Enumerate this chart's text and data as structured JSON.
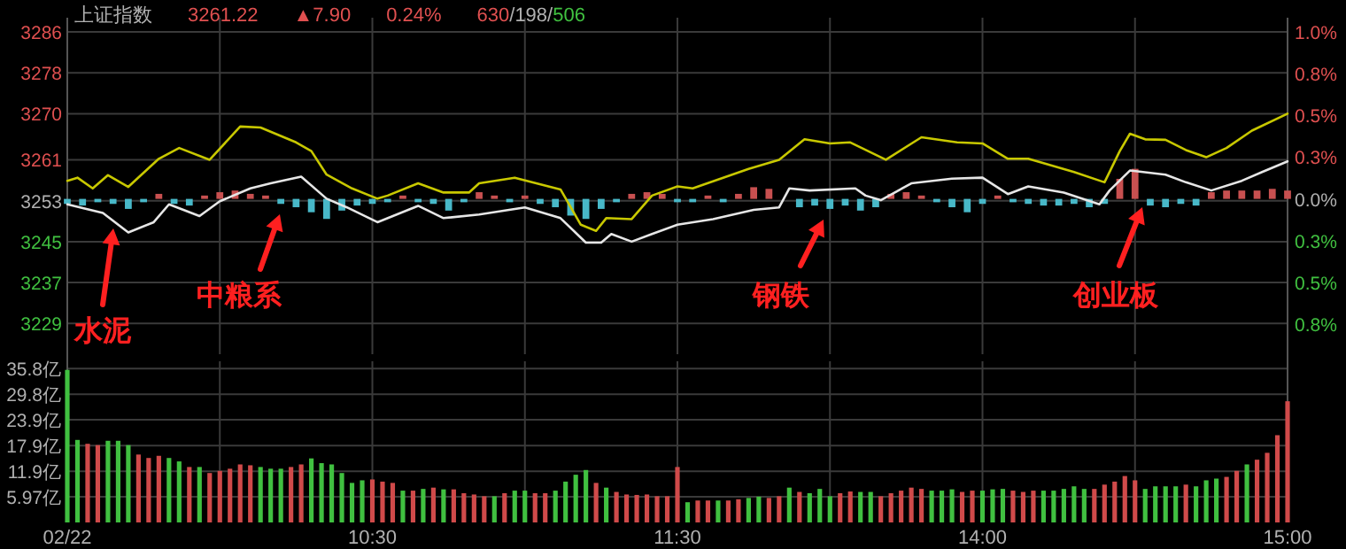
{
  "chart_data": [
    {
      "type": "line",
      "categories": [
        null,
        null,
        null,
        null,
        null,
        null,
        null,
        null,
        null,
        null,
        null,
        null,
        null,
        null,
        null,
        null,
        null,
        null,
        null,
        null,
        null,
        null,
        null,
        null,
        null,
        null,
        null,
        null,
        null,
        null,
        null,
        null,
        null,
        null,
        null,
        null,
        null,
        null,
        null,
        null,
        null,
        null,
        null,
        null,
        null,
        null,
        null,
        null,
        null,
        null,
        null,
        null,
        null,
        null,
        null,
        null,
        null,
        null,
        null,
        null,
        null,
        null,
        null,
        null,
        null,
        null,
        null,
        null,
        null,
        null,
        null,
        null,
        null,
        null,
        null,
        null,
        null,
        null,
        null,
        null,
        null,
        null,
        null,
        null,
        null,
        null,
        null,
        null,
        null,
        null,
        null,
        null,
        null,
        null,
        null,
        null,
        null,
        null,
        null,
        null,
        null,
        null,
        null,
        null,
        null,
        null,
        null,
        null,
        null,
        null,
        null,
        null,
        null,
        null,
        null,
        null,
        null,
        null,
        null,
        null,
        null,
        null,
        null,
        null,
        null,
        null,
        null,
        null,
        null,
        null,
        null,
        null,
        null,
        null,
        null,
        null,
        null,
        null,
        null,
        null,
        null,
        null,
        null,
        null,
        null,
        null,
        null,
        null,
        null,
        null,
        null,
        null,
        null,
        null,
        null,
        null,
        null,
        null,
        null,
        null,
        null,
        null,
        null,
        null,
        null,
        null,
        null,
        null,
        null,
        null,
        null,
        null,
        null,
        null,
        null,
        null,
        null,
        null,
        null,
        null,
        null,
        null,
        null,
        null,
        null,
        null,
        null,
        null,
        null,
        null,
        null,
        null,
        null,
        null,
        null,
        null,
        null,
        null,
        null,
        null,
        null,
        null,
        null,
        null,
        null,
        null,
        null,
        null,
        null,
        null,
        null,
        null,
        null,
        null,
        null,
        null,
        null,
        null,
        null,
        null,
        null,
        null,
        null,
        null,
        null,
        null,
        null,
        null,
        null,
        null,
        null,
        null,
        null,
        null,
        null,
        null,
        null,
        null,
        null,
        null,
        null
      ],
      "ylim": [
        3223,
        3286
      ],
      "yticks": [
        3286,
        3278,
        3270,
        3261,
        3253,
        3245,
        3237,
        3229
      ],
      "y2lim": [
        -0.93,
        1.0
      ],
      "y2ticks": [
        {
          "value": 1.0,
          "label": "1.0%"
        },
        {
          "value": 0.75,
          "label": "0.8%"
        },
        {
          "value": 0.5,
          "label": "0.5%"
        },
        {
          "value": 0.25,
          "label": "0.3%"
        },
        {
          "value": 0,
          "label": "0.0%"
        },
        {
          "value": -0.25,
          "label": "0.3%"
        },
        {
          "value": -0.5,
          "label": "0.5%"
        },
        {
          "value": -0.75,
          "label": "0.8%"
        }
      ],
      "grid": true,
      "tick_labels": "y",
      "annotations": [
        "上证指数",
        "3261.22",
        "▲7.90",
        "0.24%",
        "630/198/506",
        "水泥",
        "中粮系",
        "钢铁",
        "创业板"
      ],
      "series": [
        {
          "type": "bar",
          "axis": "y2",
          "values": [
            -0.03,
            null,
            null,
            -0.04,
            null,
            null,
            -0.02,
            null,
            null,
            -0.03,
            null,
            null,
            -0.06,
            null,
            null,
            -0.02,
            null,
            null,
            0.03,
            null,
            null,
            -0.03,
            null,
            null,
            -0.04,
            null,
            null,
            0.02,
            null,
            null,
            0.04,
            null,
            null,
            0.05,
            null,
            null,
            0.03,
            null,
            null,
            0.02,
            null,
            null,
            -0.03,
            null,
            null,
            -0.05,
            null,
            null,
            -0.08,
            null,
            null,
            -0.12,
            null,
            null,
            -0.07,
            null,
            null,
            -0.04,
            null,
            null,
            -0.03,
            null,
            null,
            -0.02,
            null,
            null,
            0.02,
            null,
            null,
            -0.02,
            null,
            null,
            -0.03,
            null,
            null,
            -0.07,
            null,
            null,
            -0.02,
            null,
            null,
            0.04,
            null,
            null,
            0.02,
            null,
            null,
            -0.02,
            null,
            null,
            0.02,
            null,
            null,
            -0.03,
            null,
            null,
            -0.05,
            null,
            null,
            -0.1,
            null,
            null,
            -0.12,
            null,
            null,
            -0.06,
            null,
            null,
            -0.02,
            null,
            null,
            0.03,
            null,
            null,
            0.04,
            null,
            null,
            0.03,
            null,
            null,
            -0.02,
            null,
            null,
            -0.02,
            null,
            null,
            0.02,
            null,
            null,
            -0.02,
            null,
            null,
            0.03,
            null,
            null,
            0.07,
            null,
            null,
            0.06,
            null,
            null,
            null,
            null,
            null,
            -0.05,
            null,
            null,
            -0.04,
            null,
            null,
            -0.06,
            null,
            null,
            -0.04,
            null,
            null,
            -0.07,
            null,
            null,
            -0.05,
            null,
            null,
            0.03,
            null,
            null,
            0.04,
            null,
            null,
            0.02,
            null,
            null,
            -0.02,
            null,
            null,
            -0.05,
            null,
            null,
            -0.08,
            null,
            null,
            -0.03,
            null,
            null,
            0.02,
            null,
            null,
            -0.02,
            null,
            null,
            -0.03,
            null,
            null,
            -0.04,
            null,
            null,
            -0.04,
            null,
            null,
            -0.03,
            null,
            null,
            -0.05,
            null,
            null,
            -0.03,
            null,
            null,
            0.12,
            null,
            null,
            0.18,
            null,
            null,
            -0.04,
            null,
            null,
            -0.05,
            null,
            null,
            -0.03,
            null,
            null,
            -0.04,
            null,
            null,
            0.04,
            null,
            null,
            0.05,
            null,
            null,
            0.05,
            null,
            null,
            0.05,
            null,
            null,
            0.06,
            null,
            null,
            0.05
          ],
          "colors": [
            "#48b8c8",
            null,
            null,
            "#48b8c8",
            null,
            null,
            "#48b8c8",
            null,
            null,
            "#48b8c8",
            null,
            null,
            "#48b8c8",
            null,
            null,
            "#48b8c8",
            null,
            null,
            "#c85050",
            null,
            null,
            "#48b8c8",
            null,
            null,
            "#48b8c8",
            null,
            null,
            "#c85050",
            null,
            null,
            "#c85050",
            null,
            null,
            "#c85050",
            null,
            null,
            "#c85050",
            null,
            null,
            "#c85050",
            null,
            null,
            "#48b8c8",
            null,
            null,
            "#48b8c8",
            null,
            null,
            "#48b8c8",
            null,
            null,
            "#48b8c8",
            null,
            null,
            "#48b8c8",
            null,
            null,
            "#48b8c8",
            null,
            null,
            "#48b8c8",
            null,
            null,
            "#48b8c8",
            null,
            null,
            "#c85050",
            null,
            null,
            "#48b8c8",
            null,
            null,
            "#48b8c8",
            null,
            null,
            "#48b8c8",
            null,
            null,
            "#48b8c8",
            null,
            null,
            "#c85050",
            null,
            null,
            "#c85050",
            null,
            null,
            "#48b8c8",
            null,
            null,
            "#c85050",
            null,
            null,
            "#48b8c8",
            null,
            null,
            "#48b8c8",
            null,
            null,
            "#48b8c8",
            null,
            null,
            "#48b8c8",
            null,
            null,
            "#48b8c8",
            null,
            null,
            "#48b8c8",
            null,
            null,
            "#c85050",
            null,
            null,
            "#c85050",
            null,
            null,
            "#c85050",
            null,
            null,
            "#48b8c8",
            null,
            null,
            "#48b8c8",
            null,
            null,
            "#c85050",
            null,
            null,
            "#48b8c8",
            null,
            null,
            "#c85050",
            null,
            null,
            "#c85050",
            null,
            null,
            "#c85050",
            null,
            null,
            null,
            null,
            null,
            "#48b8c8",
            null,
            null,
            "#48b8c8",
            null,
            null,
            "#48b8c8",
            null,
            null,
            "#48b8c8",
            null,
            null,
            "#48b8c8",
            null,
            null,
            "#48b8c8",
            null,
            null,
            "#c85050",
            null,
            null,
            "#c85050",
            null,
            null,
            "#c85050",
            null,
            null,
            "#48b8c8",
            null,
            null,
            "#48b8c8",
            null,
            null,
            "#48b8c8",
            null,
            null,
            "#48b8c8",
            null,
            null,
            "#c85050",
            null,
            null,
            "#48b8c8",
            null,
            null,
            "#48b8c8",
            null,
            null,
            "#48b8c8",
            null,
            null,
            "#48b8c8",
            null,
            null,
            "#48b8c8",
            null,
            null,
            "#48b8c8",
            null,
            null,
            "#48b8c8",
            null,
            null,
            "#c85050",
            null,
            null,
            "#c85050",
            null,
            null,
            "#48b8c8",
            null,
            null,
            "#48b8c8",
            null,
            null,
            "#48b8c8",
            null,
            null,
            "#48b8c8",
            null,
            null,
            "#c85050",
            null,
            null,
            "#c85050",
            null,
            null,
            "#c85050",
            null,
            null,
            "#c85050",
            null,
            null,
            "#c85050",
            null,
            null,
            "#c85050"
          ]
        },
        {
          "color": "#c8c800",
          "values": [
            3256.9,
            null,
            3257.5,
            null,
            null,
            3255.4,
            null,
            null,
            3258,
            null,
            null,
            null,
            3255.7,
            null,
            null,
            null,
            null,
            null,
            3261.2,
            null,
            null,
            null,
            3263.3,
            null,
            null,
            null,
            null,
            null,
            3261,
            null,
            null,
            null,
            null,
            null,
            3267.5,
            null,
            null,
            null,
            3267.3,
            null,
            null,
            null,
            null,
            null,
            null,
            3264.4,
            null,
            null,
            3262.7,
            null,
            null,
            3258.1,
            null,
            null,
            null,
            null,
            3255.4,
            null,
            null,
            null,
            null,
            3253.4,
            null,
            3254,
            null,
            null,
            null,
            null,
            null,
            3256.4,
            null,
            null,
            null,
            null,
            3254.6,
            null,
            null,
            null,
            null,
            3254.6,
            null,
            3256.4,
            null,
            null,
            null,
            null,
            null,
            null,
            3257.5,
            null,
            null,
            null,
            null,
            null,
            null,
            null,
            null,
            3255.2,
            null,
            null,
            null,
            3248.3,
            null,
            null,
            3247.1,
            null,
            3249.6,
            null,
            null,
            null,
            null,
            3249.4,
            null,
            null,
            null,
            3254,
            null,
            null,
            null,
            null,
            3255.8,
            null,
            null,
            3255.4,
            null,
            null,
            null,
            null,
            null,
            null,
            null,
            null,
            null,
            null,
            3259.2,
            null,
            null,
            null,
            null,
            null,
            3261,
            null,
            null,
            null,
            null,
            3265,
            null,
            null,
            null,
            null,
            3264.2,
            null,
            null,
            null,
            3264.4,
            null,
            null,
            null,
            null,
            null,
            null,
            3261,
            null,
            null,
            null,
            null,
            null,
            null,
            3265.4,
            null,
            null,
            null,
            null,
            null,
            null,
            3264.4,
            null,
            null,
            null,
            null,
            3264.2,
            null,
            null,
            null,
            null,
            3261.2,
            null,
            null,
            null,
            3261.2,
            null,
            null,
            null,
            null,
            null,
            null,
            null,
            null,
            3258.6,
            null,
            null,
            null,
            null,
            null,
            3256.6,
            null,
            null,
            3262.7,
            null,
            3266.1,
            null,
            null,
            3265,
            null,
            null,
            null,
            3264.9,
            null,
            null,
            null,
            3262.9,
            null,
            null,
            null,
            3261.5,
            null,
            null,
            null,
            3263.3,
            null,
            null,
            null,
            null,
            3266.7,
            null,
            null,
            null,
            null,
            null,
            null,
            3270
          ]
        },
        {
          "color": "#e6e6e6",
          "values": [
            3252.3,
            null,
            null,
            null,
            null,
            null,
            null,
            3250.6,
            null,
            null,
            null,
            null,
            3246.8,
            null,
            null,
            null,
            null,
            3248.8,
            null,
            null,
            3252.3,
            null,
            null,
            null,
            null,
            null,
            3250,
            null,
            null,
            null,
            3252.9,
            null,
            null,
            null,
            null,
            null,
            3255.4,
            null,
            null,
            null,
            3256.4,
            null,
            null,
            null,
            null,
            null,
            3257.7,
            null,
            null,
            null,
            null,
            3253.4,
            null,
            null,
            null,
            3251.7,
            null,
            null,
            null,
            null,
            null,
            3248.8,
            null,
            null,
            null,
            null,
            null,
            null,
            null,
            3252,
            null,
            null,
            null,
            null,
            3249.6,
            null,
            null,
            null,
            null,
            null,
            null,
            3250.3,
            null,
            null,
            null,
            null,
            null,
            null,
            null,
            null,
            3251.7,
            null,
            null,
            null,
            null,
            null,
            null,
            3249.6,
            null,
            null,
            null,
            null,
            3244.8,
            null,
            null,
            3244.8,
            null,
            3246.5,
            null,
            null,
            null,
            3245,
            null,
            null,
            null,
            3246.5,
            null,
            null,
            null,
            null,
            3248.3,
            null,
            null,
            null,
            null,
            null,
            null,
            3249.4,
            null,
            null,
            null,
            null,
            null,
            null,
            null,
            3251.2,
            null,
            null,
            null,
            null,
            3251.7,
            null,
            3255.4,
            null,
            null,
            null,
            3255,
            null,
            null,
            null,
            null,
            null,
            null,
            null,
            null,
            3255.4,
            null,
            3254,
            null,
            null,
            3253.1,
            null,
            null,
            null,
            null,
            null,
            3256.4,
            null,
            null,
            null,
            null,
            null,
            null,
            null,
            3257.3,
            null,
            null,
            null,
            null,
            null,
            3257.5,
            null,
            null,
            null,
            null,
            3254.3,
            null,
            null,
            null,
            3255.8,
            null,
            null,
            null,
            null,
            null,
            null,
            3254.6,
            null,
            null,
            null,
            null,
            null,
            null,
            3252.3,
            null,
            3255,
            null,
            null,
            null,
            3258.9,
            null,
            null,
            null,
            null,
            null,
            null,
            3258.1,
            null,
            null,
            null,
            3256.6,
            null,
            null,
            null,
            null,
            3255,
            null,
            null,
            null,
            null,
            null,
            3256.9,
            null,
            null,
            null,
            3258.6,
            null,
            null,
            null,
            null,
            3260.7
          ]
        }
      ]
    },
    {
      "type": "bar",
      "categories": [
        "02/22",
        null,
        null,
        null,
        null,
        null,
        null,
        null,
        null,
        null,
        null,
        null,
        null,
        null,
        null,
        null,
        null,
        null,
        null,
        null,
        null,
        null,
        null,
        null,
        null,
        null,
        null,
        null,
        null,
        null,
        "10:30",
        null,
        null,
        null,
        null,
        null,
        null,
        null,
        null,
        null,
        null,
        null,
        null,
        null,
        null,
        null,
        null,
        null,
        null,
        null,
        null,
        null,
        null,
        null,
        null,
        null,
        null,
        null,
        null,
        null,
        "11:30",
        null,
        null,
        null,
        null,
        null,
        null,
        null,
        null,
        null,
        null,
        null,
        null,
        null,
        null,
        null,
        null,
        null,
        null,
        null,
        null,
        null,
        null,
        null,
        null,
        null,
        null,
        null,
        null,
        null,
        "14:00",
        null,
        null,
        null,
        null,
        null,
        null,
        null,
        null,
        null,
        null,
        null,
        null,
        null,
        null,
        null,
        null,
        null,
        null,
        null,
        null,
        null,
        null,
        null,
        null,
        null,
        null,
        null,
        null,
        null,
        "15:00"
      ],
      "ylim": [
        0,
        37.5
      ],
      "yticks": [
        {
          "value": 5.97,
          "label": "5.97亿"
        },
        {
          "value": 11.9,
          "label": "11.9亿"
        },
        {
          "value": 17.9,
          "label": "17.9亿"
        },
        {
          "value": 23.9,
          "label": "23.9亿"
        },
        {
          "value": 29.8,
          "label": "29.8亿"
        },
        {
          "value": 35.8,
          "label": "35.8亿"
        }
      ],
      "grid": true,
      "series": [
        {
          "values": [
            35.5,
            19.2,
            18.3,
            18,
            19,
            19,
            18,
            15.8,
            15,
            15.5,
            15,
            14.2,
            12.9,
            12.9,
            11.5,
            12,
            12.5,
            13.5,
            13.3,
            12.9,
            12.5,
            12.5,
            12.9,
            13.5,
            14.9,
            13.8,
            13.5,
            11.5,
            9.2,
            9.8,
            10,
            9.5,
            9.2,
            7.4,
            7.4,
            7.8,
            8.1,
            7.7,
            7.7,
            6.8,
            6.5,
            6.1,
            6.1,
            6.8,
            7.4,
            7.4,
            6.8,
            6.8,
            7.4,
            9.5,
            11.1,
            12.2,
            9.2,
            8.1,
            7.1,
            6.5,
            6.4,
            6.5,
            6.1,
            6.1,
            12.9,
            4.7,
            5.1,
            5.1,
            5.1,
            5.1,
            5.4,
            5.7,
            6,
            5.7,
            6.1,
            8.1,
            7.1,
            6.8,
            7.8,
            6.1,
            6.8,
            7.2,
            7.1,
            7.1,
            6.1,
            6.8,
            7.4,
            8.1,
            7.8,
            7.4,
            7.4,
            7.7,
            7.1,
            7.4,
            7.4,
            7.7,
            7.8,
            7.4,
            7.1,
            7.4,
            7.4,
            7.4,
            7.8,
            8.4,
            7.8,
            7.8,
            8.8,
            9.5,
            10.8,
            9.8,
            7.8,
            8.4,
            8.4,
            8.4,
            8.8,
            8.4,
            9.8,
            10.2,
            10.6,
            12,
            13.5,
            14.6,
            16.2,
            20.3,
            28.2
          ],
          "colors": [
            "#40c040",
            "#40c040",
            "#d04a4a",
            "#d04a4a",
            "#40c040",
            "#40c040",
            "#40c040",
            "#d04a4a",
            "#d04a4a",
            "#d04a4a",
            "#40c040",
            "#40c040",
            "#d04a4a",
            "#40c040",
            "#d04a4a",
            "#d04a4a",
            "#d04a4a",
            "#d04a4a",
            "#d04a4a",
            "#40c040",
            "#40c040",
            "#40c040",
            "#d04a4a",
            "#d04a4a",
            "#40c040",
            "#40c040",
            "#40c040",
            "#40c040",
            "#40c040",
            "#40c040",
            "#d04a4a",
            "#d04a4a",
            "#d04a4a",
            "#40c040",
            "#d04a4a",
            "#40c040",
            "#d04a4a",
            "#40c040",
            "#d04a4a",
            "#d04a4a",
            "#d04a4a",
            "#d04a4a",
            "#40c040",
            "#d04a4a",
            "#40c040",
            "#40c040",
            "#d04a4a",
            "#d04a4a",
            "#40c040",
            "#40c040",
            "#40c040",
            "#40c040",
            "#d04a4a",
            "#40c040",
            "#d04a4a",
            "#d04a4a",
            "#d04a4a",
            "#d04a4a",
            "#d04a4a",
            "#d04a4a",
            "#d04a4a",
            "#40c040",
            "#d04a4a",
            "#d04a4a",
            "#40c040",
            "#d04a4a",
            "#d04a4a",
            "#40c040",
            "#40c040",
            "#d04a4a",
            "#d04a4a",
            "#40c040",
            "#d04a4a",
            "#40c040",
            "#40c040",
            "#40c040",
            "#d04a4a",
            "#d04a4a",
            "#40c040",
            "#40c040",
            "#d04a4a",
            "#d04a4a",
            "#d04a4a",
            "#d04a4a",
            "#d04a4a",
            "#40c040",
            "#40c040",
            "#40c040",
            "#d04a4a",
            "#d04a4a",
            "#40c040",
            "#40c040",
            "#40c040",
            "#d04a4a",
            "#d04a4a",
            "#d04a4a",
            "#40c040",
            "#40c040",
            "#40c040",
            "#40c040",
            "#40c040",
            "#d04a4a",
            "#d04a4a",
            "#d04a4a",
            "#d04a4a",
            "#d04a4a",
            "#40c040",
            "#40c040",
            "#40c040",
            "#40c040",
            "#d04a4a",
            "#40c040",
            "#40c040",
            "#40c040",
            "#d04a4a",
            "#d04a4a",
            "#40c040",
            "#d04a4a",
            "#d04a4a",
            "#d04a4a",
            "#d04a4a"
          ]
        }
      ]
    }
  ]
}
